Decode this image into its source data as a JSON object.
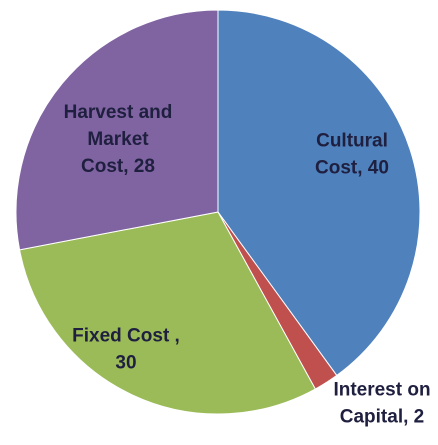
{
  "chart_data": {
    "type": "pie",
    "title": "",
    "legend": "none",
    "slices": [
      {
        "label": "Cultural Cost",
        "value": 40,
        "color": "#4F81BD",
        "label_lines": [
          "Cultural",
          "Cost, 40"
        ],
        "label_color": "#1F1F3F"
      },
      {
        "label": "Interest on Capital",
        "value": 2,
        "color": "#C0504D",
        "label_lines": [
          "Interest on",
          "Capital, 2"
        ],
        "label_color": "#1F1F3F"
      },
      {
        "label": "Fixed Cost ",
        "value": 30,
        "color": "#9BBB59",
        "label_lines": [
          "Fixed Cost ,",
          "30"
        ],
        "label_color": "#1F1F3F"
      },
      {
        "label": "Harvest and Market Cost",
        "value": 28,
        "color": "#8064A2",
        "label_lines": [
          "Harvest and",
          "Market",
          "Cost, 28"
        ],
        "label_color": "#1F1F3F"
      }
    ]
  }
}
